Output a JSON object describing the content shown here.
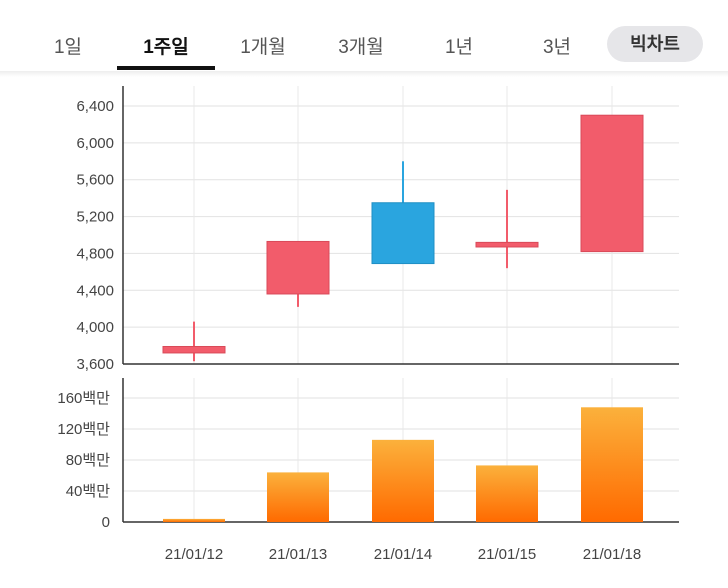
{
  "tabs": [
    {
      "label": "1일",
      "active": false
    },
    {
      "label": "1주일",
      "active": true
    },
    {
      "label": "1개월",
      "active": false
    },
    {
      "label": "3개월",
      "active": false
    },
    {
      "label": "1년",
      "active": false
    },
    {
      "label": "3년",
      "active": false
    }
  ],
  "bigchart_label": "빅차트",
  "colors": {
    "up": "#f25c6b",
    "down": "#2aa5df",
    "volume_top": "#fbb13c",
    "volume_bottom": "#ff6a00"
  },
  "chart_data": [
    {
      "type": "candlestick",
      "categories": [
        "21/01/12",
        "21/01/13",
        "21/01/14",
        "21/01/15",
        "21/01/18"
      ],
      "ohlc": [
        {
          "date": "21/01/12",
          "open": 3720,
          "high": 4060,
          "low": 3630,
          "close": 3790
        },
        {
          "date": "21/01/13",
          "open": 4360,
          "high": 4930,
          "low": 4220,
          "close": 4930
        },
        {
          "date": "21/01/14",
          "open": 5350,
          "high": 5800,
          "low": 4690,
          "close": 4690
        },
        {
          "date": "21/01/15",
          "open": 4870,
          "high": 5490,
          "low": 4640,
          "close": 4920
        },
        {
          "date": "21/01/18",
          "open": 4820,
          "high": 6300,
          "low": 4820,
          "close": 6300
        }
      ],
      "ylim": [
        3600,
        6600
      ],
      "yticks": [
        {
          "value": 3600,
          "label": "3,600"
        },
        {
          "value": 4000,
          "label": "4,000"
        },
        {
          "value": 4400,
          "label": "4,400"
        },
        {
          "value": 4800,
          "label": "4,800"
        },
        {
          "value": 5200,
          "label": "5,200"
        },
        {
          "value": 5600,
          "label": "5,600"
        },
        {
          "value": 6000,
          "label": "6,000"
        },
        {
          "value": 6400,
          "label": "6,400"
        }
      ],
      "grid": true
    },
    {
      "type": "bar",
      "categories": [
        "21/01/12",
        "21/01/13",
        "21/01/14",
        "21/01/15",
        "21/01/18"
      ],
      "values": [
        4,
        64,
        106,
        73,
        148
      ],
      "unit": "백만",
      "ylim": [
        0,
        180
      ],
      "yticks": [
        {
          "value": 0,
          "label": "0"
        },
        {
          "value": 40,
          "label": "40백만"
        },
        {
          "value": 80,
          "label": "80백만"
        },
        {
          "value": 120,
          "label": "120백만"
        },
        {
          "value": 160,
          "label": "160백만"
        }
      ],
      "grid": true
    }
  ]
}
